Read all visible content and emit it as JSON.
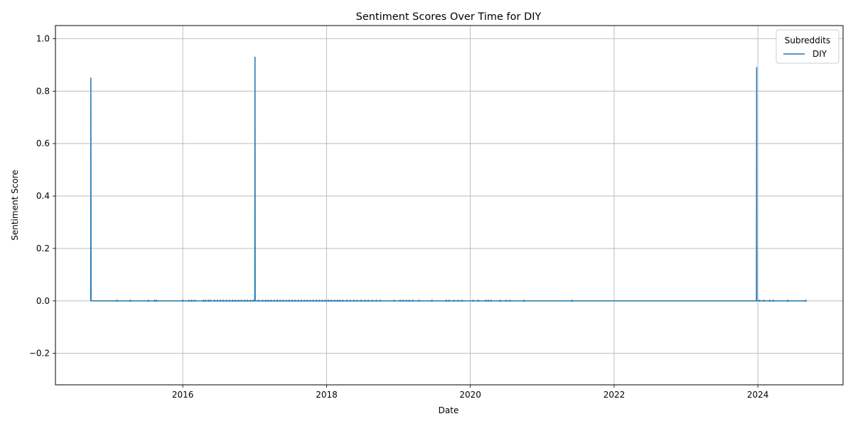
{
  "chart_data": {
    "type": "line",
    "title": "Sentiment Scores Over Time for DIY",
    "xlabel": "Date",
    "ylabel": "Sentiment Score",
    "xlim": [
      "2014-03-25",
      "2025-03-09"
    ],
    "ylim": [
      -0.32,
      1.05
    ],
    "x_ticks": [
      "2016",
      "2018",
      "2020",
      "2022",
      "2024"
    ],
    "x_tick_dates": [
      "2016-01-01",
      "2018-01-01",
      "2020-01-01",
      "2022-01-01",
      "2024-01-01"
    ],
    "y_ticks": [
      -0.2,
      0.0,
      0.2,
      0.4,
      0.6,
      0.8,
      1.0
    ],
    "y_tick_labels": [
      "−0.2",
      "0.0",
      "0.2",
      "0.4",
      "0.6",
      "0.8",
      "1.0"
    ],
    "grid": true,
    "legend": {
      "title": "Subreddits",
      "position": "top-right",
      "entries": [
        "DIY"
      ]
    },
    "series": [
      {
        "name": "DIY",
        "color": "#1f77b4",
        "points": [
          [
            "2014-09-20",
            0.0
          ],
          [
            "2014-09-21",
            0.85
          ],
          [
            "2014-09-22",
            0.0
          ],
          [
            "2015-02-01",
            0.0
          ],
          [
            "2015-04-10",
            0.0
          ],
          [
            "2015-07-10",
            0.0
          ],
          [
            "2015-08-10",
            0.0
          ],
          [
            "2015-08-20",
            0.0
          ],
          [
            "2016-01-01",
            0.0
          ],
          [
            "2016-02-01",
            0.0
          ],
          [
            "2016-02-20",
            0.0
          ],
          [
            "2016-04-15",
            0.0
          ],
          [
            "2016-06-10",
            0.0
          ],
          [
            "2016-08-01",
            0.0
          ],
          [
            "2016-10-01",
            0.0
          ],
          [
            "2016-12-20",
            0.0
          ],
          [
            "2017-01-01",
            0.0
          ],
          [
            "2017-01-02",
            0.93
          ],
          [
            "2017-01-03",
            0.0
          ],
          [
            "2017-03-01",
            0.0
          ],
          [
            "2017-05-01",
            0.0
          ],
          [
            "2017-07-01",
            0.0
          ],
          [
            "2017-09-01",
            0.0
          ],
          [
            "2017-11-01",
            0.0
          ],
          [
            "2018-01-01",
            0.0
          ],
          [
            "2018-03-01",
            0.0
          ],
          [
            "2018-05-01",
            0.0
          ],
          [
            "2018-07-01",
            0.0
          ],
          [
            "2018-10-01",
            0.0
          ],
          [
            "2018-12-10",
            0.0
          ],
          [
            "2019-01-15",
            0.0
          ],
          [
            "2019-03-01",
            0.0
          ],
          [
            "2019-04-15",
            0.0
          ],
          [
            "2019-06-20",
            0.0
          ],
          [
            "2019-09-01",
            0.0
          ],
          [
            "2019-10-10",
            0.0
          ],
          [
            "2019-11-20",
            0.0
          ],
          [
            "2020-01-15",
            0.0
          ],
          [
            "2020-03-01",
            0.0
          ],
          [
            "2020-04-15",
            0.0
          ],
          [
            "2020-06-01",
            0.0
          ],
          [
            "2020-07-20",
            0.0
          ],
          [
            "2020-10-01",
            0.0
          ],
          [
            "2021-06-01",
            0.0
          ],
          [
            "2023-12-25",
            0.0
          ],
          [
            "2023-12-26",
            0.89
          ],
          [
            "2023-12-27",
            0.0
          ],
          [
            "2024-02-01",
            0.0
          ],
          [
            "2024-03-20",
            0.0
          ],
          [
            "2024-06-01",
            0.0
          ],
          [
            "2024-09-01",
            0.0
          ]
        ],
        "markers": [
          "2015-02-01",
          "2015-04-10",
          "2015-07-10",
          "2015-08-10",
          "2015-08-20",
          "2016-01-01",
          "2016-02-01",
          "2016-02-15",
          "2016-03-01",
          "2016-04-15",
          "2016-04-25",
          "2016-05-10",
          "2016-05-20",
          "2016-06-10",
          "2016-06-25",
          "2016-07-10",
          "2016-07-25",
          "2016-08-10",
          "2016-08-25",
          "2016-09-10",
          "2016-09-25",
          "2016-10-10",
          "2016-10-25",
          "2016-11-10",
          "2016-11-25",
          "2016-12-10",
          "2016-12-25",
          "2017-01-20",
          "2017-02-10",
          "2017-02-25",
          "2017-03-10",
          "2017-03-25",
          "2017-04-10",
          "2017-04-25",
          "2017-05-10",
          "2017-05-25",
          "2017-06-10",
          "2017-06-25",
          "2017-07-10",
          "2017-07-25",
          "2017-08-10",
          "2017-08-25",
          "2017-09-10",
          "2017-09-25",
          "2017-10-10",
          "2017-10-25",
          "2017-11-10",
          "2017-11-25",
          "2017-12-10",
          "2017-12-25",
          "2018-01-10",
          "2018-01-25",
          "2018-02-10",
          "2018-02-25",
          "2018-03-10",
          "2018-03-25",
          "2018-04-15",
          "2018-05-01",
          "2018-05-20",
          "2018-06-05",
          "2018-06-25",
          "2018-07-15",
          "2018-08-01",
          "2018-08-20",
          "2018-09-10",
          "2018-10-01",
          "2018-12-10",
          "2019-01-10",
          "2019-01-25",
          "2019-02-10",
          "2019-02-25",
          "2019-03-15",
          "2019-04-15",
          "2019-06-20",
          "2019-09-01",
          "2019-09-15",
          "2019-10-10",
          "2019-11-01",
          "2019-11-20",
          "2020-01-15",
          "2020-02-10",
          "2020-03-20",
          "2020-04-01",
          "2020-04-15",
          "2020-06-01",
          "2020-07-01",
          "2020-07-20",
          "2020-10-01",
          "2021-06-01",
          "2024-01-10",
          "2024-02-01",
          "2024-03-01",
          "2024-03-20",
          "2024-06-01",
          "2024-09-01"
        ]
      }
    ]
  }
}
